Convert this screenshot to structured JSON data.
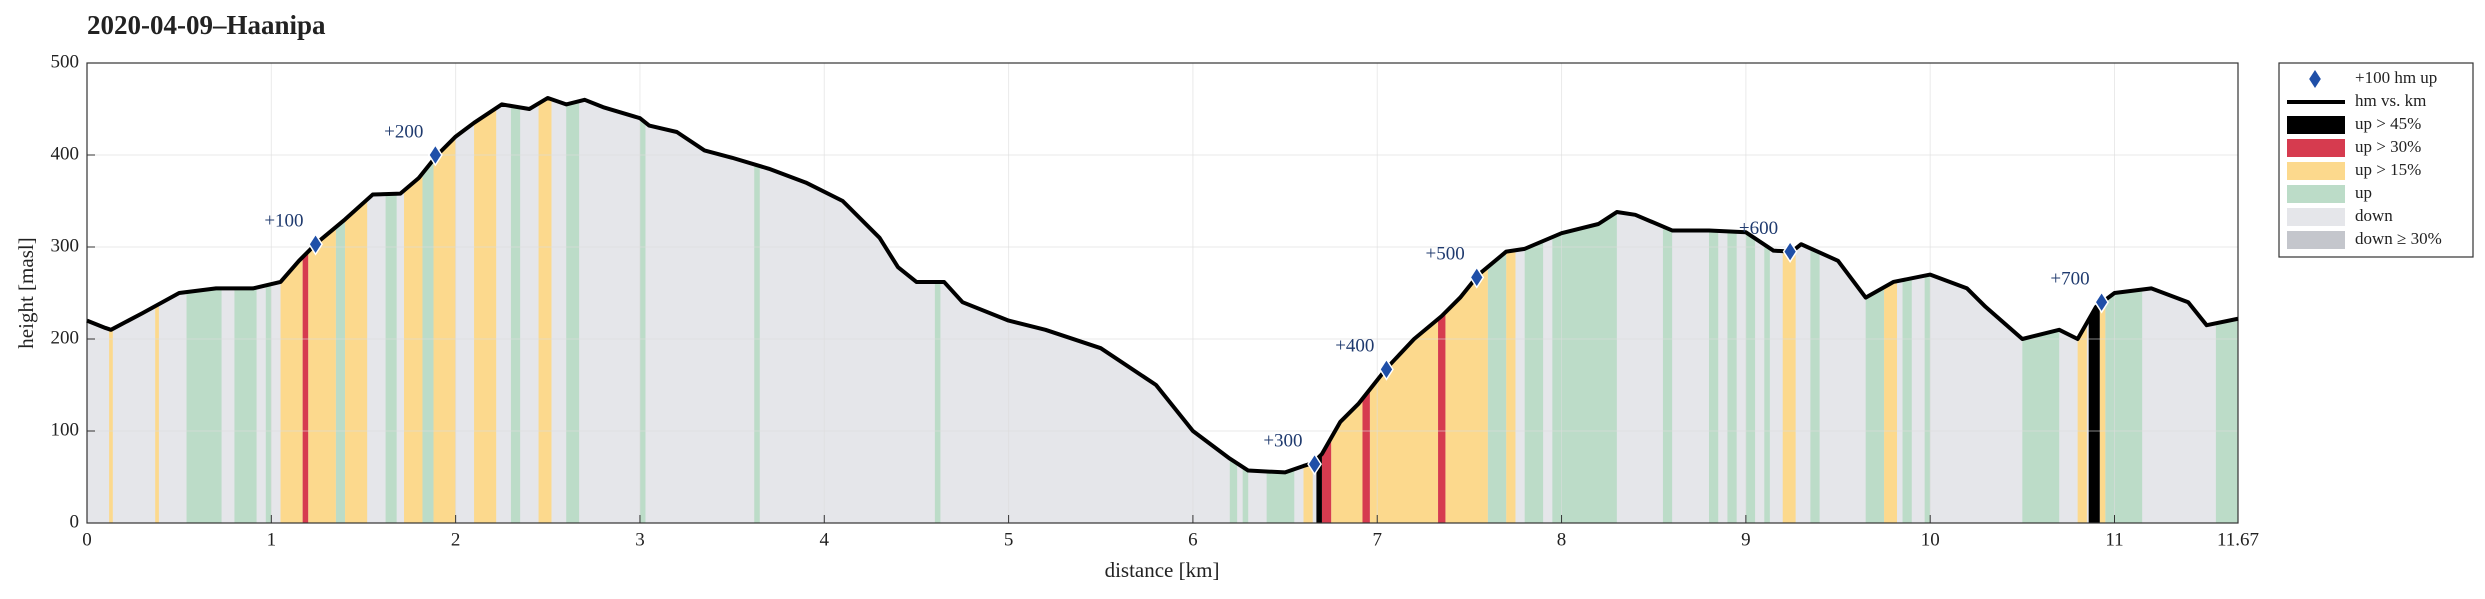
{
  "chart_data": {
    "type": "line",
    "title": "2020-04-09–Haanipa",
    "xlabel": "distance [km]",
    "ylabel": "height [masl]",
    "xlim": [
      0,
      11.67
    ],
    "ylim": [
      0,
      500
    ],
    "xticks": [
      0,
      1,
      2,
      3,
      4,
      5,
      6,
      7,
      8,
      9,
      10,
      11,
      11.67
    ],
    "yticks": [
      0,
      100,
      200,
      300,
      400,
      500
    ],
    "grid": true,
    "profile": {
      "name": "hm vs. km",
      "color": "#000000",
      "x": [
        0,
        0.1,
        0.13,
        0.3,
        0.5,
        0.7,
        0.9,
        1.05,
        1.15,
        1.25,
        1.4,
        1.55,
        1.7,
        1.8,
        1.9,
        2.0,
        2.1,
        2.25,
        2.4,
        2.5,
        2.6,
        2.7,
        2.8,
        3.0,
        3.05,
        3.2,
        3.35,
        3.5,
        3.7,
        3.9,
        4.1,
        4.3,
        4.4,
        4.5,
        4.65,
        4.75,
        5.0,
        5.2,
        5.5,
        5.8,
        6.0,
        6.2,
        6.3,
        6.5,
        6.6,
        6.65,
        6.7,
        6.8,
        6.9,
        7.05,
        7.2,
        7.35,
        7.45,
        7.55,
        7.7,
        7.8,
        8.0,
        8.2,
        8.3,
        8.4,
        8.6,
        8.8,
        9.0,
        9.15,
        9.25,
        9.3,
        9.5,
        9.65,
        9.8,
        10.0,
        10.2,
        10.3,
        10.5,
        10.7,
        10.8,
        10.9,
        11.0,
        11.2,
        11.4,
        11.5,
        11.67
      ],
      "y": [
        220,
        212,
        210,
        228,
        250,
        255,
        255,
        262,
        285,
        305,
        330,
        357,
        358,
        375,
        400,
        420,
        435,
        455,
        450,
        462,
        455,
        460,
        452,
        440,
        432,
        425,
        405,
        397,
        385,
        370,
        350,
        310,
        278,
        262,
        262,
        240,
        220,
        210,
        190,
        150,
        100,
        70,
        57,
        55,
        62,
        65,
        75,
        110,
        130,
        168,
        200,
        225,
        245,
        270,
        295,
        298,
        315,
        325,
        338,
        335,
        318,
        318,
        316,
        296,
        295,
        303,
        285,
        245,
        262,
        270,
        255,
        235,
        200,
        210,
        200,
        235,
        250,
        255,
        240,
        215,
        222
      ]
    },
    "markers": {
      "name": "+100 hm up",
      "color": "#1f4fa8",
      "x": [
        1.24,
        1.89,
        6.66,
        7.05,
        7.54,
        9.24,
        10.93
      ],
      "y": [
        303,
        400,
        64,
        167,
        267,
        295,
        240
      ],
      "labels": [
        "+100",
        "+200",
        "+300",
        "+400",
        "+500",
        "+600",
        "+700"
      ]
    },
    "bands": [
      {
        "name": "up > 45%",
        "color": "#000000",
        "ranges": [
          [
            6.67,
            6.7
          ],
          [
            10.86,
            10.92
          ]
        ]
      },
      {
        "name": "up > 30%",
        "color": "#d63b4f",
        "ranges": [
          [
            1.17,
            1.2
          ],
          [
            6.7,
            6.75
          ],
          [
            6.92,
            6.96
          ],
          [
            7.33,
            7.37
          ]
        ]
      },
      {
        "name": "up > 15%",
        "color": "#fcd98d",
        "ranges": [
          [
            0.12,
            0.14
          ],
          [
            0.37,
            0.39
          ],
          [
            1.05,
            1.17
          ],
          [
            1.2,
            1.35
          ],
          [
            1.4,
            1.52
          ],
          [
            1.72,
            1.82
          ],
          [
            1.88,
            2.0
          ],
          [
            2.1,
            2.22
          ],
          [
            2.45,
            2.52
          ],
          [
            6.6,
            6.65
          ],
          [
            6.75,
            6.92
          ],
          [
            6.96,
            7.33
          ],
          [
            7.37,
            7.6
          ],
          [
            7.7,
            7.75
          ],
          [
            9.2,
            9.27
          ],
          [
            9.75,
            9.82
          ],
          [
            10.8,
            10.85
          ],
          [
            10.92,
            10.95
          ]
        ]
      },
      {
        "name": "up",
        "color": "#bcdcc8",
        "ranges": [
          [
            0.54,
            0.73
          ],
          [
            0.8,
            0.92
          ],
          [
            0.97,
            1.0
          ],
          [
            1.35,
            1.4
          ],
          [
            1.62,
            1.68
          ],
          [
            1.82,
            1.88
          ],
          [
            2.3,
            2.35
          ],
          [
            2.6,
            2.67
          ],
          [
            3.0,
            3.03
          ],
          [
            3.62,
            3.65
          ],
          [
            4.6,
            4.63
          ],
          [
            6.2,
            6.24
          ],
          [
            6.27,
            6.3
          ],
          [
            6.4,
            6.55
          ],
          [
            7.6,
            7.7
          ],
          [
            7.8,
            7.9
          ],
          [
            7.95,
            8.3
          ],
          [
            8.55,
            8.6
          ],
          [
            8.8,
            8.85
          ],
          [
            8.9,
            8.95
          ],
          [
            9.0,
            9.05
          ],
          [
            9.1,
            9.13
          ],
          [
            9.35,
            9.4
          ],
          [
            9.65,
            9.75
          ],
          [
            9.85,
            9.9
          ],
          [
            9.97,
            10.0
          ],
          [
            10.5,
            10.7
          ],
          [
            10.95,
            11.15
          ],
          [
            11.55,
            11.67
          ]
        ]
      },
      {
        "name": "down",
        "color": "#e5e6ea",
        "ranges": [
          [
            0,
            11.67
          ]
        ]
      },
      {
        "name": "down ≥ 30%",
        "color": "#c4c6cc",
        "ranges": [
          [
            4.3,
            4.36
          ],
          [
            10.28,
            10.32
          ]
        ]
      }
    ]
  }
}
